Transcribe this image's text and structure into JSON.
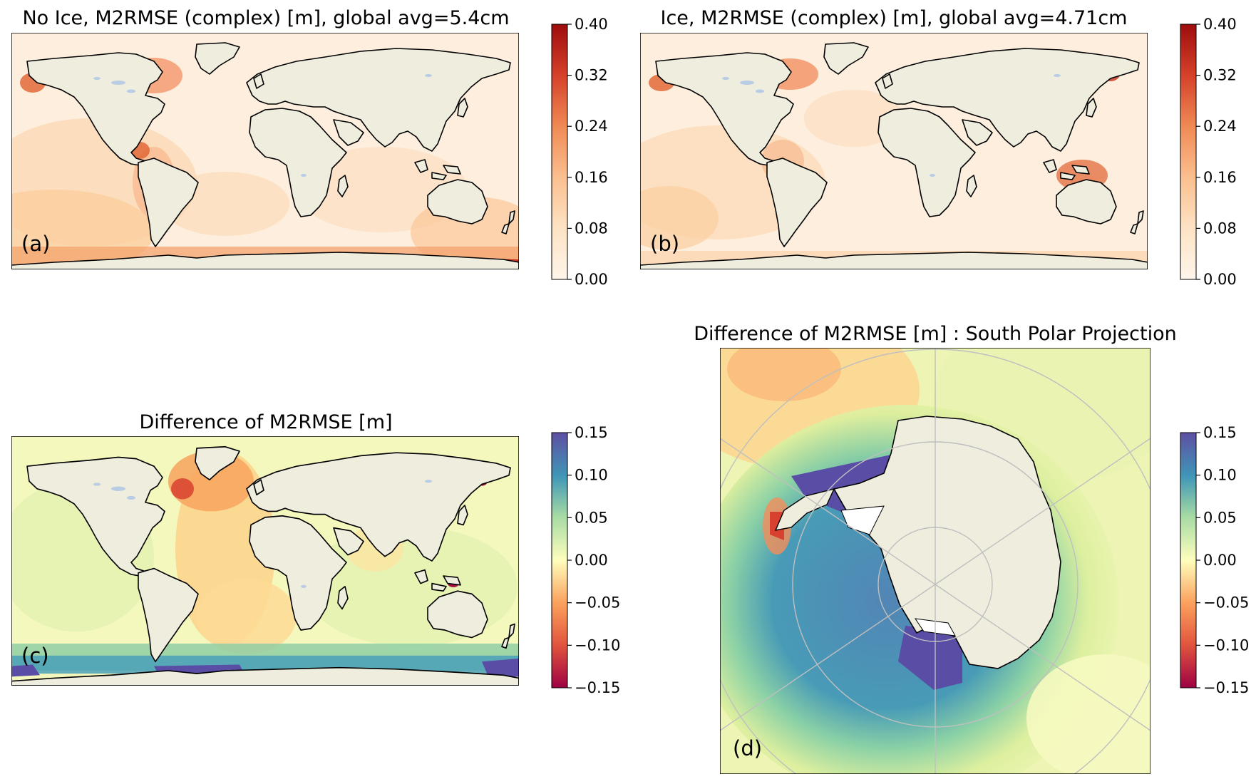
{
  "colors": {
    "land": "#efeddd",
    "lake": "#b8cde3",
    "ocean_low": "#fdeedd",
    "ocean_mid": "#fbd0a8",
    "ocean_high": "#e0622f",
    "ocean_max": "#a80f0f",
    "diff_neutral": "#f6f9c0",
    "diff_pos_mid": "#3aa0b8",
    "diff_pos_max": "#5a4da6",
    "diff_neg_mid": "#f5a25a",
    "diff_neg_max": "#a2103e",
    "grid": "#bfbfbf"
  },
  "panels": {
    "a": {
      "title": "No Ice, M2RMSE (complex) [m], global avg=5.4cm",
      "label": "(a)",
      "colorbar": {
        "ticks": [
          "0.40",
          "0.32",
          "0.24",
          "0.16",
          "0.08",
          "0.00"
        ]
      }
    },
    "b": {
      "title": "Ice, M2RMSE (complex) [m], global avg=4.71cm",
      "label": "(b)",
      "colorbar": {
        "ticks": [
          "0.40",
          "0.32",
          "0.24",
          "0.16",
          "0.08",
          "0.00"
        ]
      }
    },
    "c": {
      "title": "Difference of M2RMSE [m]",
      "label": "(c)",
      "colorbar": {
        "ticks": [
          "0.15",
          "0.10",
          "0.05",
          "0.00",
          "−0.05",
          "−0.10",
          "−0.15"
        ]
      }
    },
    "d": {
      "title": "Difference of M2RMSE [m] : South Polar Projection",
      "label": "(d)",
      "colorbar": {
        "ticks": [
          "0.15",
          "0.10",
          "0.05",
          "0.00",
          "−0.05",
          "−0.10",
          "−0.15"
        ]
      }
    }
  },
  "chart_data": [
    {
      "type": "heatmap",
      "title": "No Ice, M2RMSE (complex) [m], global avg=5.4cm",
      "projection": "global",
      "colorbar_range": [
        0.0,
        0.4
      ],
      "colorbar_ticks": [
        0.0,
        0.08,
        0.16,
        0.24,
        0.32,
        0.4
      ]
    },
    {
      "type": "heatmap",
      "title": "Ice, M2RMSE (complex) [m], global avg=4.71cm",
      "projection": "global",
      "colorbar_range": [
        0.0,
        0.4
      ],
      "colorbar_ticks": [
        0.0,
        0.08,
        0.16,
        0.24,
        0.32,
        0.4
      ]
    },
    {
      "type": "heatmap",
      "title": "Difference of M2RMSE [m]",
      "projection": "global",
      "colorbar_range": [
        -0.15,
        0.15
      ],
      "colorbar_ticks": [
        -0.15,
        -0.1,
        -0.05,
        0.0,
        0.05,
        0.1,
        0.15
      ]
    },
    {
      "type": "heatmap",
      "title": "Difference of M2RMSE [m] : South Polar Projection",
      "projection": "south-polar",
      "colorbar_range": [
        -0.15,
        0.15
      ],
      "colorbar_ticks": [
        -0.15,
        -0.1,
        -0.05,
        0.0,
        0.05,
        0.1,
        0.15
      ]
    }
  ]
}
